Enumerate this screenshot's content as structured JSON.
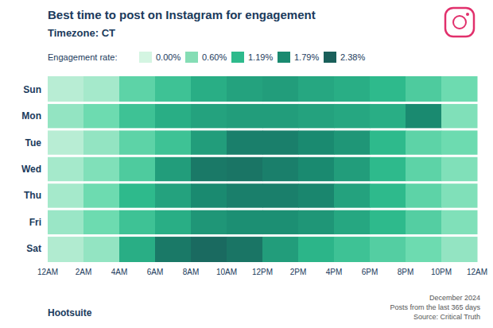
{
  "chart_data": {
    "type": "heatmap",
    "title": "Best time to post on Instagram for engagement",
    "subtitle": "Timezone: CT",
    "categories": [
      "Sun",
      "Mon",
      "Tue",
      "Wed",
      "Thu",
      "Fri",
      "Sat"
    ],
    "x_tick_labels": [
      "12AM",
      "2AM",
      "4AM",
      "6AM",
      "8AM",
      "10AM",
      "12PM",
      "2PM",
      "4PM",
      "6PM",
      "8PM",
      "10PM",
      "12AM"
    ],
    "values": [
      [
        0.2,
        0.25,
        0.45,
        0.55,
        0.65,
        0.7,
        0.72,
        0.68,
        0.65,
        0.6,
        0.5,
        0.4
      ],
      [
        0.3,
        0.4,
        0.55,
        0.65,
        0.7,
        0.72,
        0.72,
        0.7,
        0.68,
        0.65,
        0.8,
        0.35
      ],
      [
        0.2,
        0.3,
        0.45,
        0.55,
        0.72,
        0.85,
        0.85,
        0.8,
        0.75,
        0.6,
        0.45,
        0.4
      ],
      [
        0.25,
        0.35,
        0.5,
        0.72,
        0.88,
        0.9,
        0.85,
        0.8,
        0.72,
        0.6,
        0.45,
        0.35
      ],
      [
        0.25,
        0.4,
        0.6,
        0.7,
        0.8,
        0.85,
        0.85,
        0.82,
        0.7,
        0.6,
        0.45,
        0.35
      ],
      [
        0.28,
        0.4,
        0.55,
        0.65,
        0.75,
        0.78,
        0.78,
        0.75,
        0.68,
        0.6,
        0.48,
        0.35
      ],
      [
        0.22,
        0.3,
        0.65,
        0.88,
        0.95,
        0.9,
        0.72,
        0.62,
        0.55,
        0.48,
        0.4,
        0.3
      ]
    ],
    "color_range": [
      0,
      1
    ],
    "colormap_colors": [
      "#e8faf2",
      "#b8edd4",
      "#6ddbb0",
      "#2eba8c",
      "#1a8a70",
      "#1a5f5a"
    ],
    "legend_title": "Engagement rate:",
    "legend_labels": [
      "0.00%",
      "0.60%",
      "1.19%",
      "1.79%",
      "2.38%"
    ],
    "legend_colors": [
      "#d4f5e2",
      "#85ddb5",
      "#2eba8c",
      "#1a8a70",
      "#1a5f5a"
    ],
    "footer_left": "Hootsuite",
    "footer_right": "December 2024\nPosts from the last 365 days\nSource: Critical Truth",
    "title_color": "#1a3a5c",
    "axis_color": "#1a3a5c",
    "grid": false
  }
}
